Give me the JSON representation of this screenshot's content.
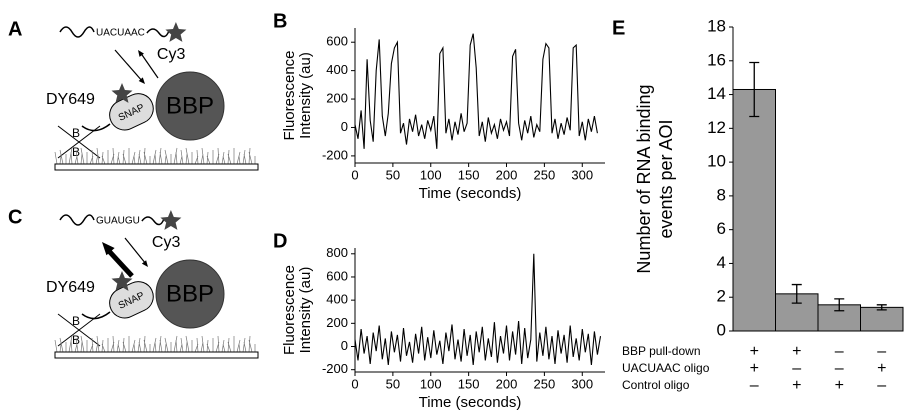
{
  "diagrams": [
    {
      "letter": "A",
      "oligo": "UACUAAC",
      "dye1": "Cy3",
      "dye2": "DY649",
      "tag": "SNAP",
      "protein": "BBP",
      "biotin": [
        "B",
        "B"
      ]
    },
    {
      "letter": "C",
      "oligo": "GUAUGU",
      "dye1": "Cy3",
      "dye2": "DY649",
      "tag": "SNAP",
      "protein": "BBP",
      "biotin": [
        "B",
        "B"
      ]
    }
  ],
  "chart_data": [
    {
      "type": "line",
      "panel": "B",
      "y_label": [
        "Fluorescence",
        "Intensity (au)"
      ],
      "x_label": "Time (seconds)",
      "xlim": [
        0,
        330
      ],
      "xticks": [
        0,
        50,
        100,
        150,
        200,
        250,
        300
      ],
      "ylim": [
        -250,
        700
      ],
      "yticks": [
        -200,
        0,
        200,
        400,
        600
      ],
      "series": [
        {
          "color": "#000000",
          "x": [
            0,
            4,
            8,
            12,
            16,
            20,
            24,
            28,
            32,
            36,
            40,
            44,
            48,
            52,
            56,
            60,
            64,
            68,
            72,
            76,
            80,
            84,
            88,
            92,
            96,
            100,
            104,
            108,
            112,
            116,
            120,
            124,
            128,
            132,
            136,
            140,
            144,
            148,
            152,
            156,
            160,
            164,
            168,
            172,
            176,
            180,
            184,
            188,
            192,
            196,
            200,
            204,
            208,
            212,
            216,
            220,
            224,
            228,
            232,
            236,
            240,
            244,
            248,
            252,
            256,
            260,
            264,
            268,
            272,
            276,
            280,
            284,
            288,
            292,
            296,
            300,
            304,
            308,
            312,
            316,
            320
          ],
          "values": [
            20,
            -80,
            120,
            -150,
            480,
            50,
            -100,
            400,
            620,
            80,
            -60,
            100,
            450,
            560,
            600,
            -40,
            30,
            -120,
            60,
            -30,
            90,
            -60,
            20,
            -80,
            50,
            -20,
            80,
            -150,
            520,
            560,
            -40,
            60,
            -90,
            40,
            -50,
            100,
            -30,
            30,
            580,
            660,
            420,
            -60,
            40,
            -100,
            70,
            -40,
            20,
            -80,
            60,
            -20,
            40,
            -60,
            500,
            550,
            30,
            -90,
            50,
            -40,
            80,
            -70,
            20,
            -30,
            480,
            590,
            560,
            -40,
            60,
            -80,
            30,
            -50,
            70,
            -20,
            560,
            580,
            -60,
            40,
            -90,
            60,
            -30,
            80,
            -40
          ]
        }
      ]
    },
    {
      "type": "line",
      "panel": "D",
      "y_label": [
        "Fluorescence",
        "Intensity (au)"
      ],
      "x_label": "Time (seconds)",
      "xlim": [
        0,
        330
      ],
      "xticks": [
        0,
        50,
        100,
        150,
        200,
        250,
        300
      ],
      "ylim": [
        -220,
        850
      ],
      "yticks": [
        -200,
        0,
        200,
        400,
        600,
        800
      ],
      "series": [
        {
          "color": "#000000",
          "x": [
            0,
            4,
            8,
            12,
            16,
            20,
            24,
            28,
            32,
            36,
            40,
            44,
            48,
            52,
            56,
            60,
            64,
            68,
            72,
            76,
            80,
            84,
            88,
            92,
            96,
            100,
            104,
            108,
            112,
            116,
            120,
            124,
            128,
            132,
            136,
            140,
            144,
            148,
            152,
            156,
            160,
            164,
            168,
            172,
            176,
            180,
            184,
            188,
            192,
            196,
            200,
            204,
            208,
            212,
            216,
            220,
            224,
            228,
            232,
            236,
            240,
            244,
            248,
            252,
            256,
            260,
            264,
            268,
            272,
            276,
            280,
            284,
            288,
            292,
            296,
            300,
            304,
            308,
            312,
            316,
            320,
            324
          ],
          "values": [
            60,
            -120,
            150,
            -60,
            90,
            -150,
            120,
            -40,
            180,
            -110,
            70,
            -160,
            130,
            -50,
            100,
            -130,
            160,
            -80,
            40,
            -140,
            110,
            -60,
            170,
            -120,
            80,
            -100,
            140,
            -70,
            50,
            -150,
            120,
            -40,
            190,
            -110,
            60,
            -130,
            150,
            -80,
            100,
            -160,
            130,
            -50,
            170,
            -120,
            70,
            -90,
            210,
            -140,
            90,
            -60,
            180,
            -120,
            130,
            -70,
            220,
            -150,
            160,
            -100,
            60,
            800,
            -130,
            120,
            -80,
            170,
            -110,
            90,
            -150,
            140,
            -60,
            100,
            -140,
            180,
            -90,
            70,
            -120,
            150,
            -50,
            110,
            -160,
            130,
            -70,
            90
          ]
        }
      ]
    },
    {
      "type": "bar",
      "panel": "E",
      "y_label": [
        "Number of RNA binding",
        "events per AOI"
      ],
      "categories": [
        null,
        null,
        null,
        null
      ],
      "values": [
        14.3,
        2.2,
        1.55,
        1.4
      ],
      "errors": [
        1.6,
        0.55,
        0.35,
        0.15
      ],
      "color": "#999999",
      "ylim": [
        0,
        18
      ],
      "yticks": [
        0,
        2,
        4,
        6,
        8,
        10,
        12,
        14,
        16,
        18
      ],
      "condition_rows": [
        {
          "label": "BBP pull-down",
          "signs": [
            "+",
            "+",
            "–",
            "–"
          ]
        },
        {
          "label": "UACUAAC oligo",
          "signs": [
            "+",
            "–",
            "–",
            "+"
          ]
        },
        {
          "label": "Control oligo",
          "signs": [
            "–",
            "+",
            "+",
            "–"
          ]
        }
      ]
    }
  ]
}
